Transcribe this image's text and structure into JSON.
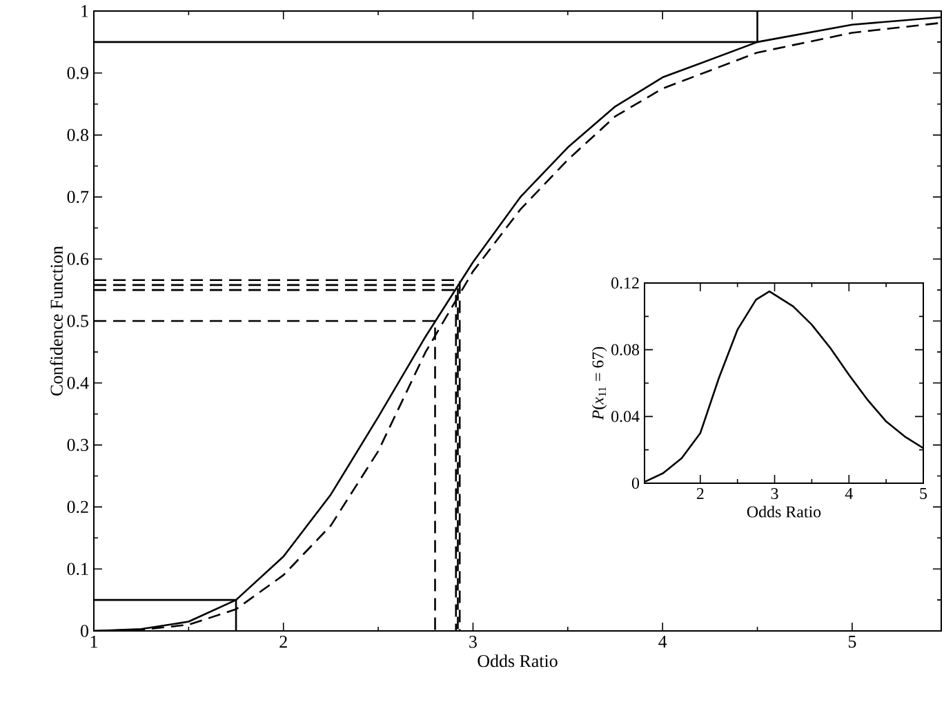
{
  "chart_data": [
    {
      "type": "line",
      "xlabel": "Odds Ratio",
      "ylabel": "Confidence Function",
      "xlim": [
        1,
        5.47
      ],
      "ylim": [
        0,
        1
      ],
      "xticks": [
        1,
        2,
        3,
        4,
        5
      ],
      "yticks": [
        0,
        0.1,
        0.2,
        0.3,
        0.4,
        0.5,
        0.6,
        0.7,
        0.8,
        0.9,
        1
      ],
      "series": [
        {
          "color": "#000000",
          "line_style": "solid",
          "x": [
            1,
            1.25,
            1.5,
            1.75,
            2.0,
            2.25,
            2.5,
            2.75,
            3.0,
            3.25,
            3.5,
            3.75,
            4.0,
            4.5,
            5.0,
            5.47
          ],
          "values": [
            0,
            0.003,
            0.015,
            0.05,
            0.12,
            0.22,
            0.345,
            0.475,
            0.595,
            0.7,
            0.78,
            0.846,
            0.893,
            0.95,
            0.978,
            0.99
          ]
        },
        {
          "color": "#000000",
          "line_style": "dashed",
          "x": [
            1,
            1.25,
            1.5,
            1.75,
            2.0,
            2.25,
            2.5,
            2.75,
            3.0,
            3.25,
            3.5,
            3.75,
            4.0,
            4.5,
            5.0,
            5.47
          ],
          "values": [
            0,
            0.002,
            0.01,
            0.035,
            0.09,
            0.17,
            0.29,
            0.45,
            0.58,
            0.68,
            0.76,
            0.83,
            0.875,
            0.933,
            0.965,
            0.981
          ]
        },
        {
          "color": "#000000",
          "line_style": "solid",
          "x": [
            1,
            4.5,
            4.5
          ],
          "values": [
            0.95,
            0.95,
            1
          ]
        },
        {
          "color": "#000000",
          "line_style": "solid",
          "x": [
            1,
            1.75,
            1.75
          ],
          "values": [
            0.05,
            0.05,
            0
          ]
        },
        {
          "color": "#000000",
          "line_style": "dashed",
          "x": [
            1,
            2.8,
            2.8
          ],
          "values": [
            0.5,
            0.5,
            0
          ]
        },
        {
          "color": "#000000",
          "line_style": "dashed",
          "x": [
            1,
            2.91,
            2.91
          ],
          "values": [
            0.55,
            0.55,
            0
          ]
        },
        {
          "color": "#000000",
          "line_style": "dashed",
          "x": [
            1,
            2.92,
            2.92
          ],
          "values": [
            0.558,
            0.558,
            0
          ]
        },
        {
          "color": "#000000",
          "line_style": "dashed",
          "x": [
            1,
            2.93,
            2.93
          ],
          "values": [
            0.566,
            0.566,
            0
          ]
        }
      ]
    },
    {
      "type": "line",
      "xlabel": "Odds Ratio",
      "ylabel": "*P*(*x*$_{11}$ = 67)",
      "xlim": [
        1.25,
        5
      ],
      "ylim": [
        0,
        0.12
      ],
      "xticks": [
        2,
        3,
        4,
        5
      ],
      "yticks": [
        0,
        0.04,
        0.08,
        0.12
      ],
      "series": [
        {
          "color": "#000000",
          "line_style": "solid",
          "x": [
            1.26,
            1.5,
            1.75,
            2.0,
            2.25,
            2.5,
            2.75,
            2.93,
            3.25,
            3.5,
            3.75,
            4.0,
            4.25,
            4.5,
            4.75,
            5.0
          ],
          "values": [
            0.001,
            0.006,
            0.015,
            0.03,
            0.063,
            0.092,
            0.11,
            0.115,
            0.106,
            0.095,
            0.081,
            0.065,
            0.05,
            0.037,
            0.028,
            0.021
          ]
        }
      ]
    }
  ]
}
